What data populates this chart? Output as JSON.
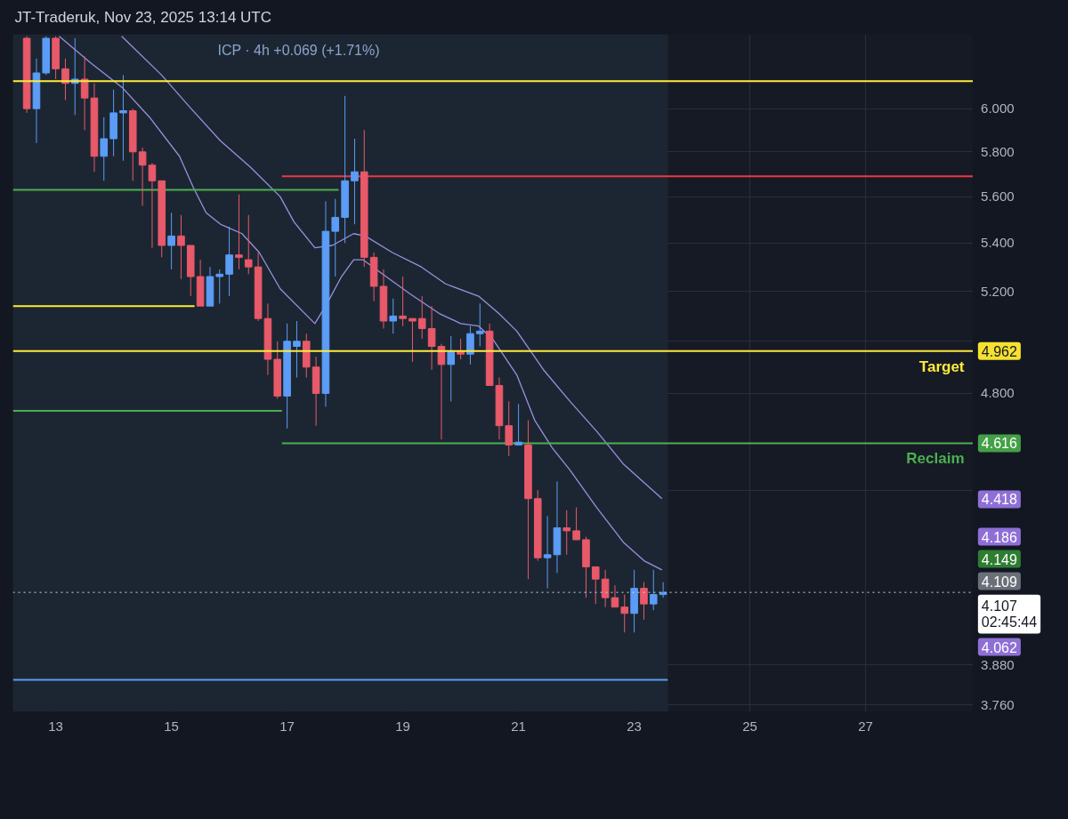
{
  "chart_data": {
    "type": "candlestick",
    "title": "JT-Traderuk, Nov 23, 2025 13:14 UTC",
    "subtitle": "ICP · 4h  +0.069 (+1.71%)",
    "x": [
      12.5,
      12.667,
      12.833,
      13,
      13.167,
      13.333,
      13.5,
      13.667,
      13.833,
      14,
      14.167,
      14.333,
      14.5,
      14.667,
      14.833,
      15,
      15.167,
      15.333,
      15.5,
      15.667,
      15.833,
      16,
      16.167,
      16.333,
      16.5,
      16.667,
      16.833,
      17,
      17.167,
      17.333,
      17.5,
      17.667,
      17.833,
      18,
      18.167,
      18.333,
      18.5,
      18.667,
      18.833,
      19,
      19.167,
      19.333,
      19.5,
      19.667,
      19.833,
      20,
      20.167,
      20.333,
      20.5,
      20.667,
      20.833,
      21,
      21.167,
      21.333,
      21.5,
      21.667,
      21.833,
      22,
      22.167,
      22.333,
      22.5,
      22.667,
      22.833,
      23,
      23.167,
      23.333,
      23.5
    ],
    "ohlc": [
      [
        6.34,
        6.35,
        5.98,
        6.0
      ],
      [
        6.0,
        6.24,
        5.84,
        6.17
      ],
      [
        6.17,
        6.35,
        6.16,
        6.34
      ],
      [
        6.34,
        6.35,
        6.14,
        6.19
      ],
      [
        6.19,
        6.24,
        6.04,
        6.12
      ],
      [
        6.12,
        6.34,
        5.97,
        6.14
      ],
      [
        6.14,
        6.25,
        5.9,
        6.05
      ],
      [
        6.05,
        6.12,
        5.71,
        5.78
      ],
      [
        5.78,
        5.96,
        5.67,
        5.86
      ],
      [
        5.86,
        6.09,
        5.78,
        5.98
      ],
      [
        5.98,
        6.16,
        5.76,
        5.99
      ],
      [
        5.99,
        6.0,
        5.67,
        5.8
      ],
      [
        5.8,
        5.82,
        5.56,
        5.74
      ],
      [
        5.74,
        5.75,
        5.38,
        5.67
      ],
      [
        5.67,
        5.67,
        5.34,
        5.39
      ],
      [
        5.39,
        5.53,
        5.29,
        5.43
      ],
      [
        5.43,
        5.52,
        5.25,
        5.39
      ],
      [
        5.39,
        5.39,
        5.18,
        5.26
      ],
      [
        5.26,
        5.33,
        5.14,
        5.14
      ],
      [
        5.14,
        5.3,
        5.14,
        5.26
      ],
      [
        5.26,
        5.29,
        5.15,
        5.27
      ],
      [
        5.27,
        5.47,
        5.18,
        5.35
      ],
      [
        5.35,
        5.61,
        5.29,
        5.34
      ],
      [
        5.33,
        5.52,
        5.27,
        5.3
      ],
      [
        5.3,
        5.36,
        5.08,
        5.09
      ],
      [
        5.09,
        5.15,
        4.87,
        4.93
      ],
      [
        4.93,
        5.0,
        4.78,
        4.79
      ],
      [
        4.79,
        5.07,
        4.67,
        5.0
      ],
      [
        4.98,
        5.08,
        4.86,
        5.0
      ],
      [
        5.0,
        5.03,
        4.86,
        4.9
      ],
      [
        4.9,
        4.94,
        4.68,
        4.8
      ],
      [
        4.8,
        5.58,
        4.75,
        5.45
      ],
      [
        5.45,
        5.59,
        5.26,
        5.51
      ],
      [
        5.51,
        6.06,
        5.4,
        5.67
      ],
      [
        5.67,
        5.86,
        5.48,
        5.71
      ],
      [
        5.71,
        5.9,
        5.3,
        5.34
      ],
      [
        5.34,
        5.36,
        5.16,
        5.22
      ],
      [
        5.22,
        5.29,
        5.05,
        5.08
      ],
      [
        5.08,
        5.17,
        5.03,
        5.1
      ],
      [
        5.1,
        5.26,
        5.06,
        5.09
      ],
      [
        5.09,
        5.09,
        4.92,
        5.08
      ],
      [
        5.09,
        5.18,
        5.01,
        5.05
      ],
      [
        5.05,
        5.14,
        4.89,
        4.98
      ],
      [
        4.98,
        4.99,
        4.63,
        4.91
      ],
      [
        4.91,
        5.02,
        4.77,
        4.96
      ],
      [
        4.96,
        5.01,
        4.93,
        4.95
      ],
      [
        4.95,
        5.06,
        4.91,
        5.03
      ],
      [
        5.03,
        5.15,
        4.98,
        5.04
      ],
      [
        5.04,
        5.07,
        4.83,
        4.83
      ],
      [
        4.83,
        4.86,
        4.63,
        4.68
      ],
      [
        4.68,
        4.77,
        4.57,
        4.61
      ],
      [
        4.61,
        4.76,
        4.61,
        4.62
      ],
      [
        4.61,
        4.7,
        4.15,
        4.42
      ],
      [
        4.42,
        4.45,
        4.21,
        4.22
      ],
      [
        4.22,
        4.36,
        4.12,
        4.23
      ],
      [
        4.23,
        4.48,
        4.17,
        4.32
      ],
      [
        4.32,
        4.38,
        4.23,
        4.31
      ],
      [
        4.31,
        4.39,
        4.28,
        4.28
      ],
      [
        4.28,
        4.29,
        4.09,
        4.19
      ],
      [
        4.19,
        4.19,
        4.07,
        4.15
      ],
      [
        4.15,
        4.18,
        4.06,
        4.09
      ],
      [
        4.09,
        4.13,
        4.06,
        4.06
      ],
      [
        4.06,
        4.1,
        3.98,
        4.04
      ],
      [
        4.04,
        4.18,
        3.98,
        4.12
      ],
      [
        4.12,
        4.14,
        4.02,
        4.07
      ],
      [
        4.07,
        4.18,
        4.05,
        4.1
      ],
      [
        4.1,
        4.14,
        4.09,
        4.107
      ]
    ],
    "series": [
      {
        "type": "line",
        "color": "#9b8fe0",
        "x": [
          13.06,
          13.6,
          14.15,
          14.62,
          15.14,
          15.38,
          15.6,
          15.85,
          16.22,
          16.52,
          16.88,
          17.48,
          17.69,
          17.94,
          18.15,
          18.31,
          18.71,
          19.12,
          19.63,
          20.0,
          20.31,
          20.55,
          20.97,
          21.28,
          21.58,
          21.89,
          22.35,
          22.82,
          23.17,
          23.48
        ],
        "values": [
          6.35,
          6.22,
          6.1,
          5.96,
          5.78,
          5.64,
          5.53,
          5.48,
          5.44,
          5.36,
          5.21,
          5.07,
          5.15,
          5.26,
          5.33,
          5.33,
          5.26,
          5.19,
          5.11,
          5.07,
          5.06,
          5.01,
          4.87,
          4.7,
          4.6,
          4.52,
          4.39,
          4.27,
          4.21,
          4.18
        ]
      },
      {
        "type": "line",
        "color": "#9b8fe0",
        "x": [
          14.14,
          14.83,
          15.34,
          15.85,
          16.37,
          16.88,
          17.12,
          17.48,
          17.78,
          18.15,
          18.35,
          18.82,
          19.32,
          19.74,
          20.31,
          20.66,
          20.97,
          21.43,
          21.89,
          22.35,
          22.82,
          23.48
        ],
        "values": [
          6.35,
          6.16,
          6.0,
          5.85,
          5.73,
          5.6,
          5.49,
          5.38,
          5.39,
          5.44,
          5.43,
          5.36,
          5.3,
          5.23,
          5.18,
          5.11,
          5.04,
          4.89,
          4.77,
          4.66,
          4.54,
          4.42
        ]
      },
      {
        "type": "line",
        "color": "#f23645",
        "x": [
          16.91,
          28.86
        ],
        "values": [
          5.69,
          5.69
        ]
      },
      {
        "type": "line",
        "color": "#4caf50",
        "x": [
          12.26,
          17.89
        ],
        "values": [
          5.63,
          5.63
        ]
      },
      {
        "type": "line",
        "color": "#ffeb3b",
        "x": [
          12.26,
          15.4
        ],
        "values": [
          5.14,
          5.14
        ]
      },
      {
        "type": "line",
        "color": "#4caf50",
        "x": [
          12.26,
          16.91
        ],
        "values": [
          4.735,
          4.735
        ]
      },
      {
        "type": "line",
        "name": "Reclaim",
        "color": "#4caf50",
        "x": [
          16.91,
          28.86
        ],
        "values": [
          4.616,
          4.616
        ]
      },
      {
        "type": "line",
        "color": "#5b9cf6",
        "x": [
          12.26,
          23.58
        ],
        "values": [
          3.835,
          3.835
        ]
      }
    ],
    "ref_lines": [
      {
        "axis": "y",
        "value": 6.13,
        "color": "#ffeb3b"
      },
      {
        "axis": "y",
        "value": 4.962,
        "label": "Target",
        "color": "#ffeb3b"
      },
      {
        "axis": "y",
        "value": 4.107,
        "color": "#d1d4dc",
        "line_style": "dotted"
      }
    ],
    "bands": [
      {
        "axis": "x",
        "from": 12.26,
        "to": 23.58,
        "color": "#1c2632"
      }
    ],
    "annotations": [
      "4.962",
      "4.616",
      "4.418",
      "4.186",
      "4.149",
      "4.109",
      "4.107\n02:45:44",
      "4.062"
    ],
    "xlim": [
      12.26,
      28.86
    ],
    "xticks": [
      13,
      15,
      17,
      19,
      21,
      23,
      25,
      27
    ],
    "ylim": [
      3.74,
      6.36
    ],
    "yticks": [
      {
        "value": 6,
        "label": "6.000"
      },
      {
        "value": 5.8,
        "label": "5.800"
      },
      {
        "value": 5.6,
        "label": "5.600"
      },
      {
        "value": 5.4,
        "label": "5.400"
      },
      {
        "value": 5.2,
        "label": "5.200"
      },
      {
        "value": 5,
        "label": null
      },
      {
        "value": 4.8,
        "label": "4.800"
      },
      {
        "value": 4.45,
        "label": null
      },
      {
        "value": 3.88,
        "label": "3.880"
      },
      {
        "value": 3.76,
        "label": "3.760"
      }
    ],
    "log": "y",
    "grid": true
  }
}
